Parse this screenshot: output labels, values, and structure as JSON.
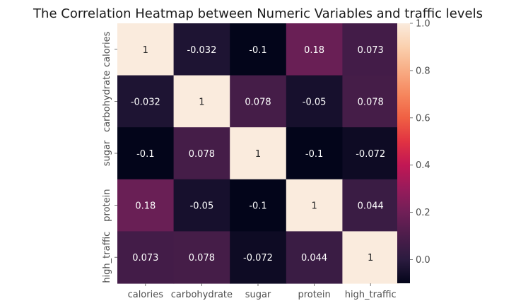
{
  "chart_data": {
    "type": "heatmap",
    "title": "The Correlation Heatmap between Numeric Variables and traffic levels",
    "row_labels": [
      "calories",
      "carbohydrate",
      "sugar",
      "protein",
      "high_traffic"
    ],
    "col_labels": [
      "calories",
      "carbohydrate",
      "sugar",
      "protein",
      "high_traffic"
    ],
    "values": [
      [
        1,
        -0.032,
        -0.1,
        0.18,
        0.073
      ],
      [
        -0.032,
        1,
        0.078,
        -0.05,
        0.078
      ],
      [
        -0.1,
        0.078,
        1,
        -0.1,
        -0.072
      ],
      [
        0.18,
        -0.05,
        -0.1,
        1,
        0.044
      ],
      [
        0.073,
        0.078,
        -0.072,
        0.044,
        1
      ]
    ],
    "cell_text": [
      [
        "1",
        "-0.032",
        "-0.1",
        "0.18",
        "0.073"
      ],
      [
        "-0.032",
        "1",
        "0.078",
        "-0.05",
        "0.078"
      ],
      [
        "-0.1",
        "0.078",
        "1",
        "-0.1",
        "-0.072"
      ],
      [
        "0.18",
        "-0.05",
        "-0.1",
        "1",
        "0.044"
      ],
      [
        "0.073",
        "0.078",
        "-0.072",
        "0.044",
        "1"
      ]
    ],
    "colorbar": {
      "min": -0.1,
      "max": 1.0,
      "ticks": [
        0.0,
        0.2,
        0.4,
        0.6,
        0.8,
        1.0
      ],
      "tick_labels": [
        "0.0",
        "0.2",
        "0.4",
        "0.6",
        "0.8",
        "1.0"
      ],
      "colormap": "rocket",
      "colormap_stops": [
        "#03051a",
        "#2b1b3f",
        "#4c1d4b",
        "#701f57",
        "#981b5b",
        "#c11754",
        "#e13342",
        "#f06043",
        "#f6875e",
        "#f8ac84",
        "#fad0ae",
        "#faebdd"
      ]
    }
  }
}
